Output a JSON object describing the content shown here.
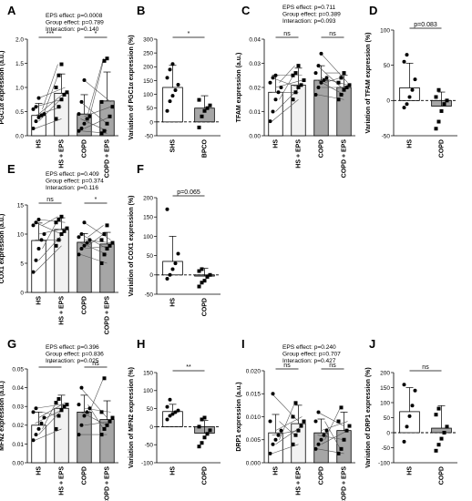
{
  "panels": [
    {
      "letter": "A",
      "ylabel": "PGC1α expression (a.u.)",
      "stats": [
        "EPS effect: p=0.0008",
        "Group effect: p=0.789",
        "Interaction: p=0.140"
      ],
      "categories": [
        "HS",
        "HS + EPS",
        "COPD",
        "COPD + EPS"
      ],
      "bar_fill": [
        "#ffffff",
        "#f2f2f2",
        "#a6a6a6",
        "#a6a6a6"
      ],
      "ylim": [
        0,
        2.0
      ],
      "yticks": [
        "0.0",
        "0.5",
        "1.0",
        "1.5",
        "2.0"
      ],
      "ytick_values": [
        0,
        0.5,
        1.0,
        1.5,
        2.0
      ],
      "sig": [
        {
          "from": 0,
          "to": 1,
          "label": "***"
        },
        {
          "from": 2,
          "to": 3,
          "label": "*"
        }
      ]
    },
    {
      "letter": "B",
      "ylabel": "Variation of PGC1α expression (%)",
      "stats": [],
      "categories": [
        "SHS",
        "BPCO"
      ],
      "bar_fill": [
        "#ffffff",
        "#a6a6a6"
      ],
      "ylim": [
        -50,
        300
      ],
      "yticks": [
        "-50",
        "0",
        "50",
        "100",
        "150",
        "200",
        "250",
        "300"
      ],
      "ytick_values": [
        -50,
        0,
        50,
        100,
        150,
        200,
        250,
        300
      ],
      "sig": [
        {
          "from": 0,
          "to": 1,
          "label": "*"
        }
      ]
    },
    {
      "letter": "C",
      "ylabel": "TFAM expression (a.u.)",
      "stats": [
        "EPS effect: p=0.711",
        "Group effect: p=0.389",
        "Interaction: p=0.093"
      ],
      "categories": [
        "HS",
        "HS + EPS",
        "COPD",
        "COPD + EPS"
      ],
      "bar_fill": [
        "#ffffff",
        "#f2f2f2",
        "#a6a6a6",
        "#a6a6a6"
      ],
      "ylim": [
        0,
        0.04
      ],
      "yticks": [
        "0.00",
        "0.01",
        "0.02",
        "0.03",
        "0.04"
      ],
      "ytick_values": [
        0,
        0.01,
        0.02,
        0.03,
        0.04
      ],
      "sig": [
        {
          "from": 0,
          "to": 1,
          "label": "ns"
        },
        {
          "from": 2,
          "to": 3,
          "label": "ns"
        }
      ]
    },
    {
      "letter": "D",
      "ylabel": "Variation of TFAM expression (%)",
      "stats": [],
      "categories": [
        "HS",
        "COPD"
      ],
      "bar_fill": [
        "#ffffff",
        "#a6a6a6"
      ],
      "ylim": [
        -50,
        100
      ],
      "yticks": [
        "-50",
        "0",
        "50",
        "100"
      ],
      "ytick_values": [
        -50,
        0,
        50,
        100
      ],
      "sig": [
        {
          "from": 0,
          "to": 1,
          "label": "p=0.083"
        }
      ]
    },
    {
      "letter": "E",
      "ylabel": "COX1 expression (a.u.)",
      "stats": [
        "EPS effect: p=0.409",
        "Group effect: p=0.374",
        "Interaction: p=0.116"
      ],
      "categories": [
        "HS",
        "HS + EPS",
        "COPD",
        "COPD + EPS"
      ],
      "bar_fill": [
        "#ffffff",
        "#f2f2f2",
        "#a6a6a6",
        "#a6a6a6"
      ],
      "ylim": [
        0,
        15
      ],
      "yticks": [
        "0",
        "5",
        "10",
        "15"
      ],
      "ytick_values": [
        0,
        5,
        10,
        15
      ],
      "sig": [
        {
          "from": 0,
          "to": 1,
          "label": "ns"
        },
        {
          "from": 2,
          "to": 3,
          "label": "*"
        }
      ]
    },
    {
      "letter": "F",
      "ylabel": "Variation of COX1 expression (%)",
      "stats": [],
      "categories": [
        "HS",
        "COPD"
      ],
      "bar_fill": [
        "#ffffff",
        "#a6a6a6"
      ],
      "ylim": [
        -50,
        200
      ],
      "yticks": [
        "-50",
        "0",
        "50",
        "100",
        "150",
        "200"
      ],
      "ytick_values": [
        -50,
        0,
        50,
        100,
        150,
        200
      ],
      "sig": [
        {
          "from": 0,
          "to": 1,
          "label": "p=0.065"
        }
      ]
    },
    {
      "letter": "G",
      "ylabel": "MFN2 expression (a.u.)",
      "stats": [
        "EPS effect: p=0.396",
        "Group effect: p=0.836",
        "Interaction: p=0.025"
      ],
      "categories": [
        "HS",
        "HS + EPS",
        "COPD",
        "COPD + EPS"
      ],
      "bar_fill": [
        "#ffffff",
        "#f2f2f2",
        "#a6a6a6",
        "#a6a6a6"
      ],
      "ylim": [
        0,
        0.05
      ],
      "yticks": [
        "0.00",
        "0.01",
        "0.02",
        "0.03",
        "0.04",
        "0.05"
      ],
      "ytick_values": [
        0,
        0.01,
        0.02,
        0.03,
        0.04,
        0.05
      ],
      "sig": [
        {
          "from": 0,
          "to": 1,
          "label": "*"
        },
        {
          "from": 2,
          "to": 3,
          "label": "ns"
        }
      ]
    },
    {
      "letter": "H",
      "ylabel": "Variation of MFN2 expression (%)",
      "stats": [],
      "categories": [
        "HS",
        "COPD"
      ],
      "bar_fill": [
        "#ffffff",
        "#a6a6a6"
      ],
      "ylim": [
        -100,
        150
      ],
      "yticks": [
        "-100",
        "-50",
        "0",
        "50",
        "100",
        "150"
      ],
      "ytick_values": [
        -100,
        -50,
        0,
        50,
        100,
        150
      ],
      "sig": [
        {
          "from": 0,
          "to": 1,
          "label": "**"
        }
      ]
    },
    {
      "letter": "I",
      "ylabel": "DRP1 expression (a.u.)",
      "stats": [
        "EPS effect: p=0.240",
        "Group effect: p=0.707",
        "Interaction: p=0.427"
      ],
      "categories": [
        "HS",
        "HS + EPS",
        "COPD",
        "COPD + EPS"
      ],
      "bar_fill": [
        "#ffffff",
        "#f2f2f2",
        "#a6a6a6",
        "#a6a6a6"
      ],
      "ylim": [
        0,
        0.02
      ],
      "yticks": [
        "0.000",
        "0.005",
        "0.010",
        "0.015",
        "0.020"
      ],
      "ytick_values": [
        0,
        0.005,
        0.01,
        0.015,
        0.02
      ],
      "sig": [
        {
          "from": 0,
          "to": 1,
          "label": "ns"
        },
        {
          "from": 2,
          "to": 3,
          "label": "ns"
        }
      ]
    },
    {
      "letter": "J",
      "ylabel": "Variation of DRP1 expression (%)",
      "stats": [],
      "categories": [
        "HS",
        "COPD"
      ],
      "bar_fill": [
        "#ffffff",
        "#a6a6a6"
      ],
      "ylim": [
        -100,
        200
      ],
      "yticks": [
        "-100",
        "-50",
        "0",
        "50",
        "100",
        "150",
        "200"
      ],
      "ytick_values": [
        -100,
        -50,
        0,
        50,
        100,
        150,
        200
      ],
      "sig": [
        {
          "from": 0,
          "to": 1,
          "label": "ns"
        }
      ]
    }
  ],
  "chart_data": [
    {
      "type": "bar",
      "title": "A",
      "ylabel": "PGC1α expression (a.u.)",
      "ylim": [
        0,
        2.0
      ],
      "categories": [
        "HS",
        "HS + EPS",
        "COPD",
        "COPD + EPS"
      ],
      "values": [
        0.42,
        0.88,
        0.45,
        0.72
      ],
      "errors": [
        0.25,
        0.4,
        0.4,
        0.6
      ],
      "points": [
        [
          0.15,
          0.3,
          0.38,
          0.42,
          0.45,
          0.55,
          0.6,
          0.78
        ],
        [
          0.35,
          0.6,
          0.75,
          0.85,
          0.9,
          1.0,
          1.25,
          1.48
        ],
        [
          0.1,
          0.15,
          0.25,
          0.35,
          0.4,
          0.45,
          0.7,
          1.15
        ],
        [
          0.05,
          0.1,
          0.25,
          0.4,
          0.6,
          0.7,
          1.55,
          1.6
        ]
      ]
    },
    {
      "type": "bar",
      "title": "B",
      "ylabel": "Variation of PGC1α expression (%)",
      "ylim": [
        -50,
        300
      ],
      "categories": [
        "SHS",
        "BPCO"
      ],
      "values": [
        125,
        50
      ],
      "errors": [
        80,
        45
      ],
      "points": [
        [
          40,
          75,
          95,
          115,
          135,
          160,
          190,
          210
        ],
        [
          -20,
          20,
          40,
          50,
          60,
          80
        ]
      ]
    },
    {
      "type": "bar",
      "title": "C",
      "ylabel": "TFAM expression (a.u.)",
      "ylim": [
        0,
        0.04
      ],
      "categories": [
        "HS",
        "HS + EPS",
        "COPD",
        "COPD + EPS"
      ],
      "values": [
        0.018,
        0.021,
        0.023,
        0.02
      ],
      "errors": [
        0.007,
        0.007,
        0.006,
        0.005
      ],
      "points": [
        [
          0.006,
          0.01,
          0.015,
          0.018,
          0.02,
          0.022,
          0.024,
          0.025
        ],
        [
          0.015,
          0.018,
          0.02,
          0.021,
          0.023,
          0.025,
          0.026,
          0.029
        ],
        [
          0.017,
          0.02,
          0.022,
          0.023,
          0.024,
          0.026,
          0.029,
          0.034
        ],
        [
          0.015,
          0.017,
          0.019,
          0.02,
          0.021,
          0.022,
          0.024,
          0.026
        ]
      ]
    },
    {
      "type": "bar",
      "title": "D",
      "ylabel": "Variation of TFAM expression (%)",
      "ylim": [
        -50,
        100
      ],
      "categories": [
        "HS",
        "COPD"
      ],
      "values": [
        18,
        -8
      ],
      "errors": [
        35,
        20
      ],
      "points": [
        [
          -10,
          -5,
          5,
          15,
          30,
          55,
          65
        ],
        [
          -40,
          -30,
          -15,
          -5,
          0,
          5,
          15
        ]
      ]
    },
    {
      "type": "bar",
      "title": "E",
      "ylabel": "COX1 expression (a.u.)",
      "ylim": [
        0,
        15
      ],
      "categories": [
        "HS",
        "HS + EPS",
        "COPD",
        "COPD + EPS"
      ],
      "values": [
        8.9,
        10.8,
        8.6,
        8.3
      ],
      "errors": [
        3.0,
        2.0,
        1.5,
        2.0
      ],
      "points": [
        [
          3.5,
          5.5,
          7.5,
          9.0,
          10.0,
          11.5,
          12.0,
          12.5
        ],
        [
          8.0,
          9.0,
          10.0,
          10.5,
          11.0,
          12.0,
          12.5,
          13.0
        ],
        [
          6.5,
          7.5,
          8.0,
          8.5,
          9.0,
          9.5,
          10.0,
          12.0
        ],
        [
          5.0,
          6.5,
          7.5,
          8.0,
          8.5,
          9.0,
          10.0,
          11.5
        ]
      ]
    },
    {
      "type": "bar",
      "title": "F",
      "ylabel": "Variation of COX1 expression (%)",
      "ylim": [
        -50,
        200
      ],
      "categories": [
        "HS",
        "COPD"
      ],
      "values": [
        35,
        -3
      ],
      "errors": [
        65,
        20
      ],
      "points": [
        [
          -10,
          0,
          15,
          30,
          55,
          170
        ],
        [
          -30,
          -20,
          -15,
          -5,
          0,
          10,
          15
        ]
      ]
    },
    {
      "type": "bar",
      "title": "G",
      "ylabel": "MFN2 expression (a.u.)",
      "ylim": [
        0,
        0.05
      ],
      "categories": [
        "HS",
        "HS + EPS",
        "COPD",
        "COPD + EPS"
      ],
      "values": [
        0.02,
        0.029,
        0.027,
        0.023
      ],
      "errors": [
        0.007,
        0.007,
        0.009,
        0.01
      ],
      "points": [
        [
          0.012,
          0.015,
          0.018,
          0.021,
          0.024,
          0.027,
          0.029
        ],
        [
          0.018,
          0.025,
          0.028,
          0.03,
          0.031,
          0.032,
          0.034
        ],
        [
          0.015,
          0.02,
          0.025,
          0.027,
          0.029,
          0.031,
          0.04
        ],
        [
          0.015,
          0.018,
          0.02,
          0.022,
          0.024,
          0.027,
          0.045
        ]
      ]
    },
    {
      "type": "bar",
      "title": "H",
      "ylabel": "Variation of MFN2 expression (%)",
      "ylim": [
        -100,
        150
      ],
      "categories": [
        "HS",
        "COPD"
      ],
      "values": [
        42,
        -18
      ],
      "errors": [
        20,
        35
      ],
      "points": [
        [
          20,
          30,
          35,
          40,
          45,
          55,
          75
        ],
        [
          -55,
          -45,
          -30,
          -20,
          -10,
          0,
          20,
          25
        ]
      ]
    },
    {
      "type": "bar",
      "title": "I",
      "ylabel": "DRP1 expression (a.u.)",
      "ylim": [
        0,
        0.02
      ],
      "categories": [
        "HS",
        "HS + EPS",
        "COPD",
        "COPD + EPS"
      ],
      "values": [
        0.0065,
        0.0085,
        0.0065,
        0.007
      ],
      "errors": [
        0.004,
        0.004,
        0.003,
        0.004
      ],
      "points": [
        [
          0.002,
          0.004,
          0.005,
          0.006,
          0.007,
          0.009,
          0.015
        ],
        [
          0.004,
          0.006,
          0.007,
          0.008,
          0.009,
          0.01,
          0.013
        ],
        [
          0.003,
          0.004,
          0.005,
          0.006,
          0.007,
          0.009,
          0.011
        ],
        [
          0.002,
          0.003,
          0.005,
          0.007,
          0.008,
          0.009,
          0.012
        ]
      ]
    },
    {
      "type": "bar",
      "title": "J",
      "ylabel": "Variation of DRP1 expression (%)",
      "ylim": [
        -100,
        200
      ],
      "categories": [
        "HS",
        "COPD"
      ],
      "values": [
        70,
        15
      ],
      "errors": [
        80,
        75
      ],
      "points": [
        [
          -30,
          20,
          55,
          90,
          140,
          160
        ],
        [
          -60,
          -40,
          -20,
          0,
          20,
          60,
          80
        ]
      ]
    }
  ]
}
